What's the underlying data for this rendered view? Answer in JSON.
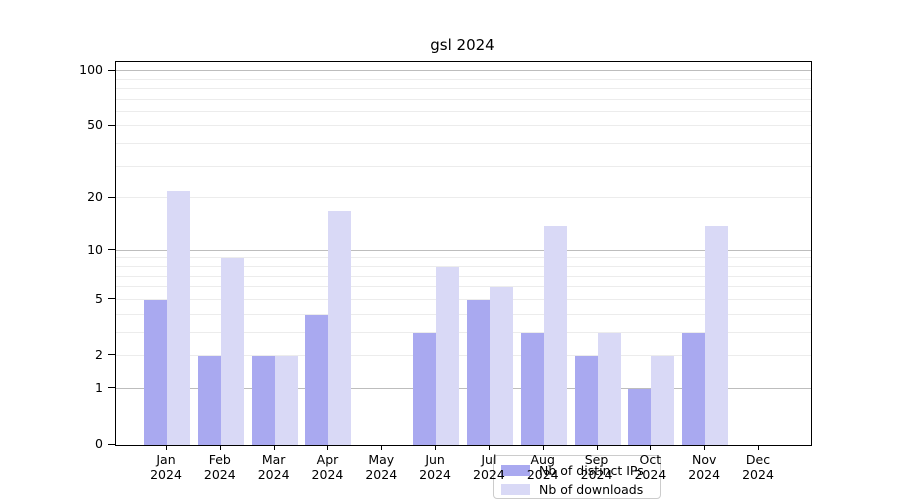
{
  "title": "gsl 2024",
  "colors": {
    "distinct_ips_bar": "#a9a9f0",
    "downloads_bar": "#d9d9f6",
    "grid_major": "#bdbdbd",
    "grid_minor": "#ececec",
    "spine": "#000000",
    "legend_border": "#cccccc"
  },
  "chart_data": {
    "type": "bar",
    "title": "gsl 2024",
    "y_scale": "log1p",
    "ylim": [
      0,
      112
    ],
    "grid": true,
    "categories": [
      "Jan",
      "Feb",
      "Mar",
      "Apr",
      "May",
      "Jun",
      "Jul",
      "Aug",
      "Sep",
      "Oct",
      "Nov",
      "Dec"
    ],
    "x_year_label": "2024",
    "series": [
      {
        "name": "Nb of distinct IPs",
        "color": "#a9a9f0",
        "values": [
          5,
          2,
          2,
          4,
          0,
          3,
          5,
          3,
          2,
          1,
          3,
          0
        ]
      },
      {
        "name": "Nb of downloads",
        "color": "#d9d9f6",
        "values": [
          22,
          9,
          2,
          17,
          0,
          8,
          6,
          14,
          3,
          2,
          14,
          0
        ]
      }
    ],
    "y_ticks": [
      0,
      1,
      2,
      5,
      10,
      20,
      50,
      100
    ],
    "y_gridlines_major": [
      1,
      10,
      100
    ],
    "y_gridlines_minor": [
      2,
      3,
      4,
      5,
      6,
      7,
      8,
      9,
      20,
      30,
      40,
      50,
      60,
      70,
      80,
      90
    ],
    "legend_position": "lower center"
  },
  "legend": {
    "items": [
      "Nb of distinct IPs",
      "Nb of downloads"
    ]
  }
}
